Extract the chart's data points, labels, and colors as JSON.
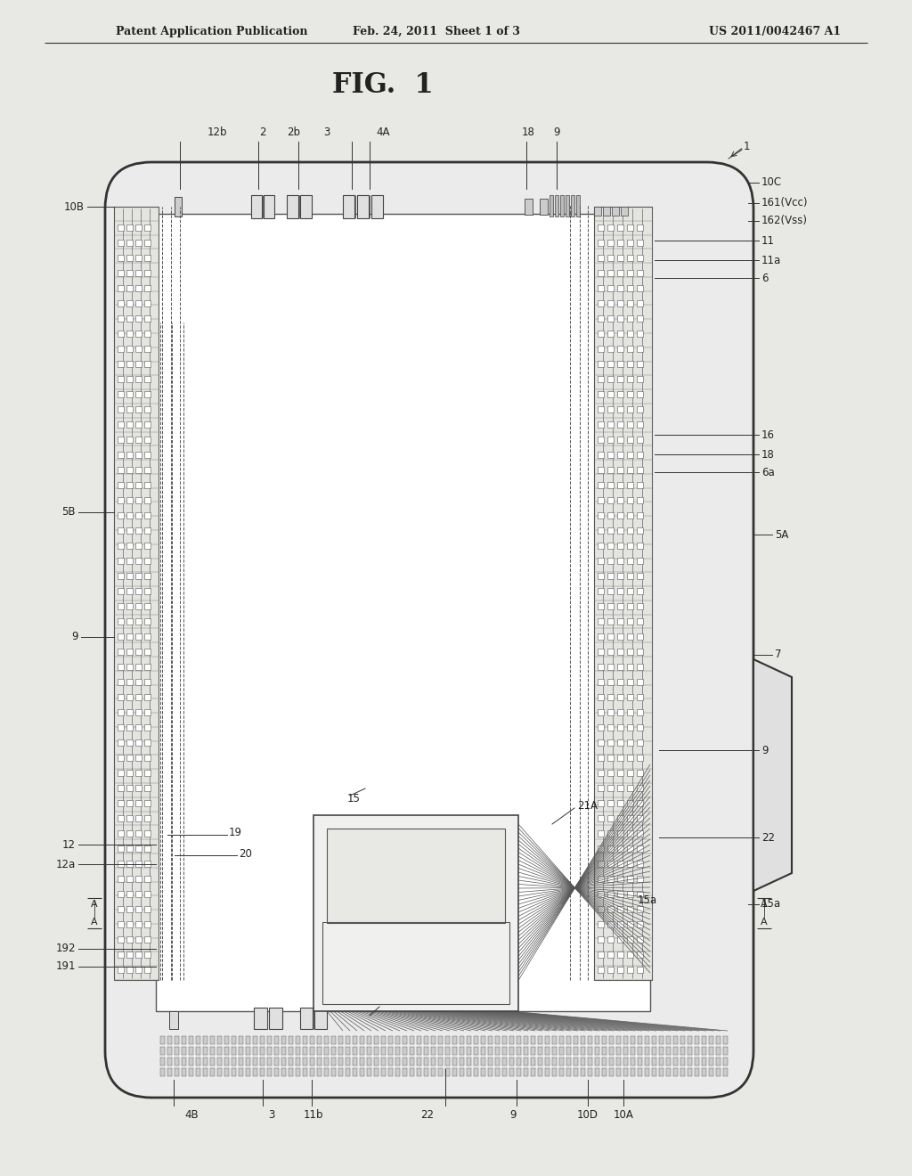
{
  "bg_color": "#e8e8e4",
  "header_text": "Patent Application Publication",
  "header_date": "Feb. 24, 2011  Sheet 1 of 3",
  "header_patent": "US 2011/0042467 A1",
  "fig_title": "FIG.  1",
  "device_color": "#e8e8e4",
  "line_color": "#333333",
  "label_color": "#222222"
}
